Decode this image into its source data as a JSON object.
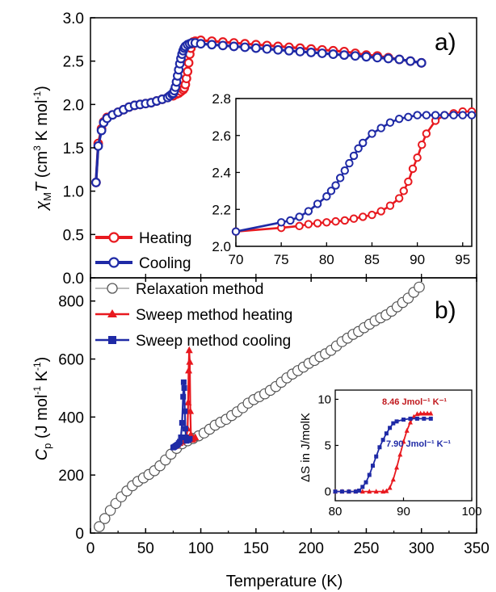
{
  "chart_data": [
    {
      "id": "a",
      "type": "line",
      "panel_label": "a)",
      "xlim": [
        0,
        350
      ],
      "ylim": [
        0.0,
        3.0
      ],
      "y_ticks": [
        "0.0",
        "0.5",
        "1.0",
        "1.5",
        "2.0",
        "2.5",
        "3.0"
      ],
      "ylabel": {
        "sym": "χ",
        "sub": "M",
        "T": "T",
        "unit_a": " (cm",
        "sup3": "3",
        "unit_b": " K mol",
        "supm1": "-1",
        "unit_c": ")"
      },
      "legend_position": "bottom-left",
      "series": [
        {
          "name": "Heating",
          "color": "#e8191f",
          "marker": "open-circle",
          "x": [
            5,
            7,
            10,
            12,
            15,
            20,
            25,
            30,
            35,
            40,
            45,
            50,
            55,
            60,
            65,
            70,
            75,
            78,
            80,
            82,
            84,
            85,
            86,
            87,
            88,
            89,
            90,
            91,
            92,
            93,
            95,
            100,
            110,
            120,
            130,
            140,
            150,
            160,
            170,
            180,
            190,
            200,
            210,
            220,
            230,
            240,
            250,
            260,
            270,
            280,
            290,
            300
          ],
          "y": [
            1.1,
            1.55,
            1.72,
            1.8,
            1.85,
            1.88,
            1.91,
            1.94,
            1.97,
            1.99,
            2.0,
            2.01,
            2.02,
            2.04,
            2.06,
            2.08,
            2.1,
            2.12,
            2.13,
            2.15,
            2.17,
            2.19,
            2.23,
            2.3,
            2.38,
            2.48,
            2.58,
            2.65,
            2.7,
            2.72,
            2.73,
            2.74,
            2.73,
            2.72,
            2.71,
            2.7,
            2.69,
            2.68,
            2.67,
            2.66,
            2.65,
            2.64,
            2.63,
            2.62,
            2.61,
            2.59,
            2.57,
            2.56,
            2.54,
            2.52,
            2.5,
            2.48
          ]
        },
        {
          "name": "Cooling",
          "color": "#1f2aa6",
          "marker": "open-circle",
          "x": [
            5,
            7,
            10,
            12,
            15,
            20,
            25,
            30,
            35,
            40,
            45,
            50,
            55,
            60,
            65,
            70,
            72,
            74,
            75,
            76,
            77,
            78,
            79,
            80,
            81,
            82,
            83,
            84,
            85,
            86,
            88,
            90,
            92,
            95,
            100,
            110,
            120,
            130,
            140,
            150,
            160,
            170,
            180,
            190,
            200,
            210,
            220,
            230,
            240,
            250,
            260,
            270,
            280,
            290,
            300
          ],
          "y": [
            1.1,
            1.52,
            1.7,
            1.79,
            1.84,
            1.88,
            1.91,
            1.94,
            1.97,
            1.99,
            2.0,
            2.01,
            2.02,
            2.04,
            2.06,
            2.08,
            2.1,
            2.12,
            2.13,
            2.16,
            2.2,
            2.26,
            2.33,
            2.4,
            2.47,
            2.53,
            2.58,
            2.62,
            2.65,
            2.67,
            2.69,
            2.7,
            2.71,
            2.71,
            2.7,
            2.69,
            2.68,
            2.67,
            2.66,
            2.65,
            2.64,
            2.63,
            2.62,
            2.61,
            2.6,
            2.59,
            2.58,
            2.57,
            2.56,
            2.55,
            2.54,
            2.53,
            2.52,
            2.5,
            2.48
          ]
        }
      ]
    },
    {
      "id": "a-inset",
      "type": "line",
      "xlim": [
        70,
        96
      ],
      "ylim": [
        2.0,
        2.8
      ],
      "x_ticks": [
        "70",
        "75",
        "80",
        "85",
        "90",
        "95"
      ],
      "y_ticks": [
        "2.0",
        "2.2",
        "2.4",
        "2.6",
        "2.8"
      ],
      "series": [
        {
          "name": "Heating",
          "color": "#e8191f",
          "x": [
            70,
            75,
            77,
            78,
            79,
            80,
            81,
            82,
            83,
            84,
            85,
            86,
            87,
            88,
            88.5,
            89,
            89.5,
            90,
            90.5,
            91,
            92,
            93,
            94,
            95,
            96
          ],
          "y": [
            2.08,
            2.1,
            2.11,
            2.12,
            2.125,
            2.13,
            2.135,
            2.14,
            2.15,
            2.16,
            2.17,
            2.19,
            2.22,
            2.26,
            2.3,
            2.35,
            2.42,
            2.48,
            2.55,
            2.61,
            2.68,
            2.71,
            2.72,
            2.73,
            2.73
          ]
        },
        {
          "name": "Cooling",
          "color": "#1f2aa6",
          "x": [
            70,
            75,
            76,
            77,
            78,
            79,
            80,
            80.5,
            81,
            81.5,
            82,
            82.5,
            83,
            83.5,
            84,
            85,
            86,
            87,
            88,
            89,
            90,
            91,
            92,
            93,
            94,
            95,
            96
          ],
          "y": [
            2.08,
            2.13,
            2.14,
            2.16,
            2.19,
            2.23,
            2.27,
            2.3,
            2.33,
            2.37,
            2.41,
            2.45,
            2.49,
            2.53,
            2.56,
            2.61,
            2.64,
            2.67,
            2.69,
            2.7,
            2.71,
            2.71,
            2.71,
            2.71,
            2.71,
            2.71,
            2.71
          ]
        }
      ]
    },
    {
      "id": "b",
      "type": "line",
      "panel_label": "b)",
      "xlabel": "Temperature (K)",
      "xlim": [
        0,
        350
      ],
      "ylim": [
        0,
        880
      ],
      "x_ticks": [
        "0",
        "50",
        "100",
        "150",
        "200",
        "250",
        "300",
        "350"
      ],
      "y_ticks": [
        "0",
        "200",
        "400",
        "600",
        "800"
      ],
      "ylabel": {
        "sym": "C",
        "sub": "p",
        "unit_a": " (J mol",
        "supm1a": "-1",
        "unit_b": " K",
        "supm1b": "-1",
        "unit_c": ")"
      },
      "legend_position": "top-left",
      "series": [
        {
          "name": "Relaxation method",
          "color": "#555555",
          "marker": "open-circle",
          "x": [
            8,
            13,
            18,
            23,
            28,
            33,
            38,
            43,
            48,
            53,
            58,
            63,
            68,
            73,
            78,
            83,
            88,
            93,
            98,
            103,
            108,
            113,
            118,
            123,
            128,
            133,
            138,
            143,
            148,
            153,
            158,
            163,
            168,
            173,
            178,
            183,
            188,
            193,
            198,
            203,
            208,
            213,
            218,
            223,
            228,
            233,
            238,
            243,
            248,
            253,
            258,
            263,
            268,
            273,
            278,
            283,
            288,
            293,
            298
          ],
          "y": [
            22,
            50,
            78,
            102,
            125,
            145,
            163,
            178,
            190,
            202,
            215,
            232,
            252,
            272,
            292,
            308,
            318,
            326,
            335,
            345,
            358,
            372,
            382,
            392,
            405,
            418,
            432,
            448,
            460,
            470,
            480,
            492,
            505,
            520,
            535,
            548,
            560,
            572,
            585,
            595,
            608,
            618,
            630,
            645,
            660,
            672,
            685,
            695,
            708,
            720,
            732,
            742,
            752,
            765,
            780,
            795,
            810,
            830,
            848
          ]
        },
        {
          "name": "Sweep method heating",
          "color": "#e8191f",
          "marker": "filled-triangle",
          "x": [
            77,
            79,
            81,
            83,
            85,
            86,
            87,
            88,
            88.5,
            89,
            89.5,
            90,
            90.5,
            91,
            92,
            93,
            95
          ],
          "y": [
            300,
            305,
            310,
            315,
            320,
            322,
            330,
            360,
            450,
            560,
            630,
            590,
            420,
            340,
            322,
            325,
            330
          ]
        },
        {
          "name": "Sweep method cooling",
          "color": "#1f2aa6",
          "marker": "filled-square",
          "x": [
            75,
            76,
            77,
            78,
            79,
            80,
            81,
            82,
            83,
            84,
            84.5,
            85,
            85.5,
            86,
            86.5,
            87,
            88,
            89,
            90
          ],
          "y": [
            295,
            297,
            300,
            302,
            305,
            310,
            315,
            330,
            380,
            470,
            520,
            500,
            420,
            360,
            330,
            318,
            320,
            322,
            325
          ]
        }
      ]
    },
    {
      "id": "b-inset",
      "type": "line",
      "ylabel": "ΔS in J/molK",
      "xlim": [
        80,
        100
      ],
      "ylim": [
        -1,
        11
      ],
      "x_ticks": [
        "80",
        "90",
        "100"
      ],
      "y_ticks": [
        "0",
        "5",
        "10"
      ],
      "annotations": [
        {
          "text": "8.46 Jmol⁻¹ K⁻¹",
          "color": "#c0181d"
        },
        {
          "text": "7.90 Jmol⁻¹ K⁻¹",
          "color": "#1f2aa6"
        }
      ],
      "series": [
        {
          "name": "Heating",
          "color": "#e8191f",
          "x": [
            80,
            81,
            82,
            83,
            84,
            85,
            86,
            87,
            87.5,
            88,
            88.5,
            89,
            89.5,
            90,
            90.5,
            91,
            91.5,
            92,
            92.5,
            93,
            93.5,
            94
          ],
          "y": [
            0,
            0,
            0,
            0,
            0,
            0,
            0,
            0,
            0.05,
            0.4,
            1.3,
            2.6,
            4.0,
            5.4,
            6.6,
            7.5,
            8.1,
            8.4,
            8.46,
            8.46,
            8.46,
            8.46
          ]
        },
        {
          "name": "Cooling",
          "color": "#1f2aa6",
          "x": [
            80,
            81,
            82,
            83,
            83.5,
            84,
            84.5,
            85,
            85.5,
            86,
            86.5,
            87,
            87.5,
            88,
            88.5,
            89,
            90,
            91,
            92,
            93,
            94
          ],
          "y": [
            0,
            0,
            0,
            0,
            0.1,
            0.5,
            1.0,
            1.8,
            2.8,
            3.8,
            4.8,
            5.6,
            6.3,
            6.9,
            7.4,
            7.6,
            7.8,
            7.9,
            7.9,
            7.9,
            7.9
          ]
        }
      ]
    }
  ]
}
